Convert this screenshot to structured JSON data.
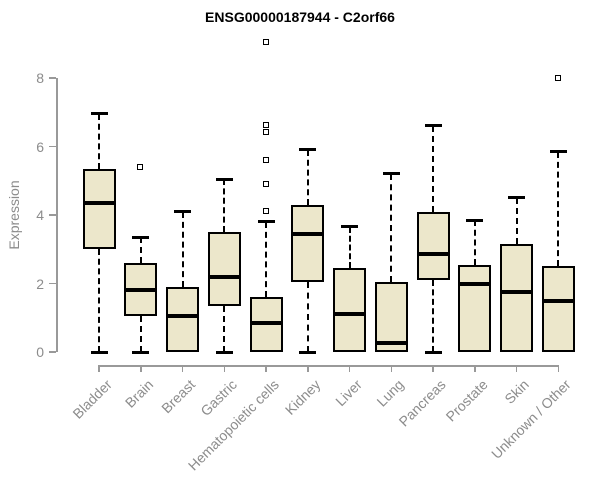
{
  "title": "ENSG00000187944 - C2orf66",
  "chart_data": {
    "type": "boxplot",
    "title": "ENSG00000187944 - C2orf66",
    "xlabel": "",
    "ylabel": "Expression",
    "ylim": [
      0,
      9.3
    ],
    "yticks": [
      0,
      2,
      4,
      6,
      8
    ],
    "grid": false,
    "legend": false,
    "categories": [
      "Bladder",
      "Brain",
      "Breast",
      "Gastric",
      "Hematopoietic cells",
      "Kidney",
      "Liver",
      "Lung",
      "Pancreas",
      "Prostate",
      "Skin",
      "Unknown / Other"
    ],
    "boxes": [
      {
        "category": "Bladder",
        "whisker_low": 0,
        "q1": 3.0,
        "median": 4.35,
        "q3": 5.35,
        "whisker_high": 6.95,
        "outliers": []
      },
      {
        "category": "Brain",
        "whisker_low": 0,
        "q1": 1.05,
        "median": 1.8,
        "q3": 2.6,
        "whisker_high": 3.35,
        "outliers": [
          5.4
        ]
      },
      {
        "category": "Breast",
        "whisker_low": 0,
        "q1": 0,
        "median": 1.05,
        "q3": 1.9,
        "whisker_high": 4.1,
        "outliers": []
      },
      {
        "category": "Gastric",
        "whisker_low": 0,
        "q1": 1.35,
        "median": 2.2,
        "q3": 3.5,
        "whisker_high": 5.05,
        "outliers": []
      },
      {
        "category": "Hematopoietic cells",
        "whisker_low": 0,
        "q1": 0,
        "median": 0.85,
        "q3": 1.6,
        "whisker_high": 3.8,
        "outliers": [
          4.1,
          4.9,
          5.6,
          6.4,
          6.6,
          9.05
        ]
      },
      {
        "category": "Kidney",
        "whisker_low": 0,
        "q1": 2.05,
        "median": 3.45,
        "q3": 4.3,
        "whisker_high": 5.9,
        "outliers": []
      },
      {
        "category": "Liver",
        "whisker_low": 0,
        "q1": 0,
        "median": 1.1,
        "q3": 2.45,
        "whisker_high": 3.65,
        "outliers": []
      },
      {
        "category": "Lung",
        "whisker_low": 0,
        "q1": 0,
        "median": 0.25,
        "q3": 2.05,
        "whisker_high": 5.2,
        "outliers": []
      },
      {
        "category": "Pancreas",
        "whisker_low": 0,
        "q1": 2.1,
        "median": 2.85,
        "q3": 4.1,
        "whisker_high": 6.6,
        "outliers": []
      },
      {
        "category": "Prostate",
        "whisker_low": 0,
        "q1": 0,
        "median": 2.0,
        "q3": 2.55,
        "whisker_high": 3.85,
        "outliers": []
      },
      {
        "category": "Skin",
        "whisker_low": 0,
        "q1": 0,
        "median": 1.75,
        "q3": 3.15,
        "whisker_high": 4.5,
        "outliers": []
      },
      {
        "category": "Unknown / Other",
        "whisker_low": 0,
        "q1": 0,
        "median": 1.5,
        "q3": 2.5,
        "whisker_high": 5.85,
        "outliers": [
          8.0
        ]
      }
    ],
    "colors": {
      "box_fill": "#ECE7CB",
      "box_border": "#000000",
      "median": "#000000",
      "whisker": "#000000",
      "axis": "#999999",
      "tick_text": "#8C8C8C",
      "title_text": "#000000",
      "background": "#FFFFFF"
    }
  }
}
